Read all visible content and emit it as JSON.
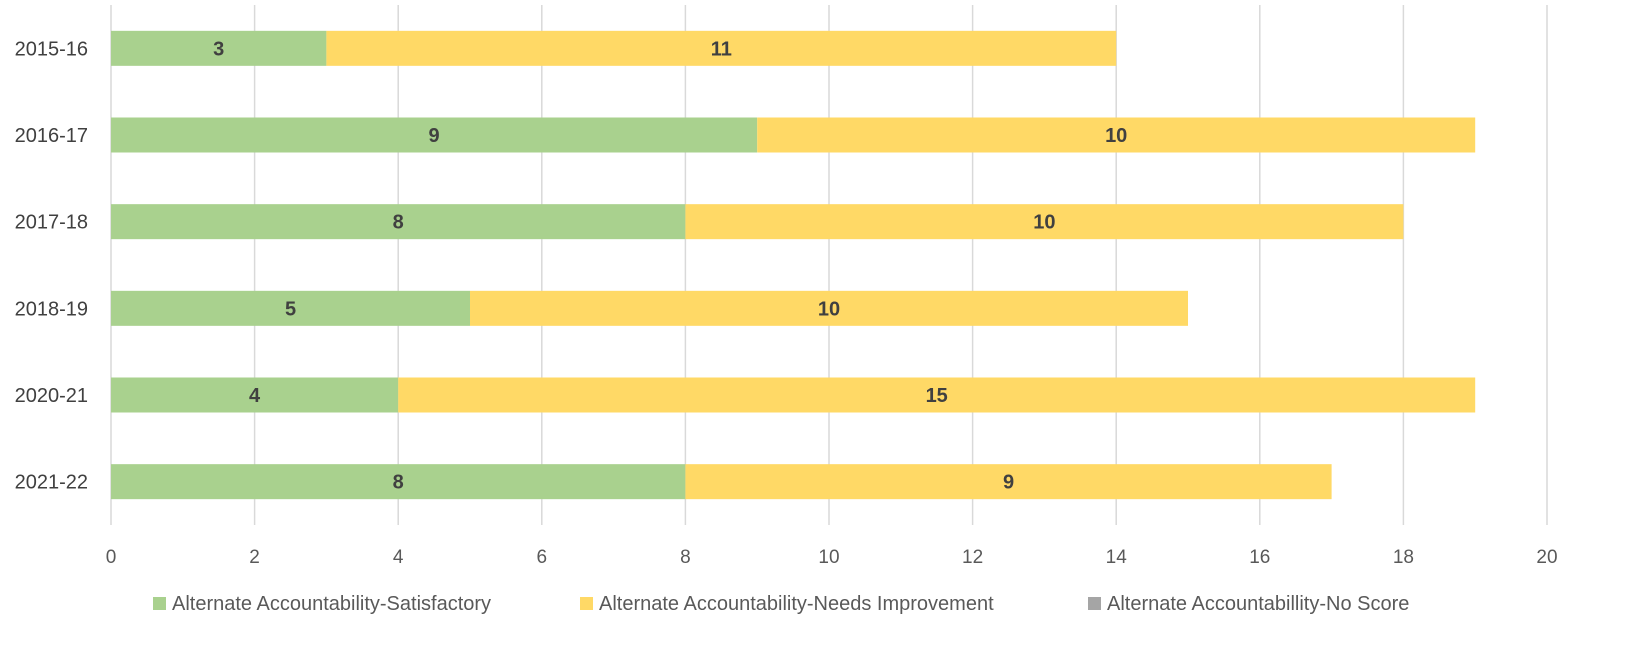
{
  "chart_data": {
    "type": "bar",
    "orientation": "horizontal",
    "stacked": true,
    "categories": [
      "2015-16",
      "2016-17",
      "2017-18",
      "2018-19",
      "2020-21",
      "2021-22"
    ],
    "series": [
      {
        "name": "Alternate Accountability-Satisfactory",
        "values": [
          3,
          9,
          8,
          5,
          4,
          8
        ],
        "color": "#a9d18e"
      },
      {
        "name": "Alternate Accountability-Needs Improvement",
        "values": [
          11,
          10,
          10,
          10,
          15,
          9
        ],
        "color": "#ffd966"
      },
      {
        "name": "Alternate Accountabillity-No Score",
        "values": [
          0,
          0,
          0,
          0,
          0,
          0
        ],
        "color": "#a5a5a5"
      }
    ],
    "xlim": [
      0,
      20
    ],
    "xticks": [
      0,
      2,
      4,
      6,
      8,
      10,
      12,
      14,
      16,
      18,
      20
    ],
    "grid": true,
    "legend_position": "bottom",
    "title": "",
    "xlabel": "",
    "ylabel": ""
  }
}
